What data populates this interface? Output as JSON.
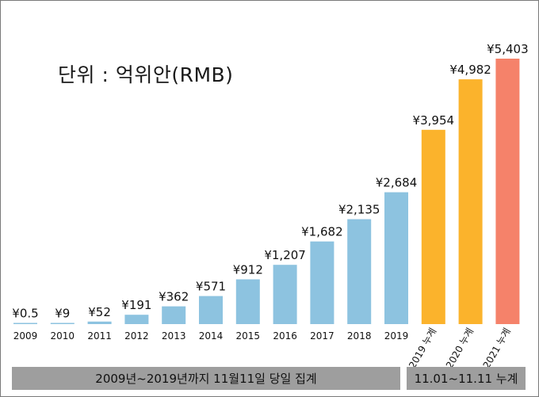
{
  "chart_data": {
    "type": "bar",
    "title": "단위 : 억위안(RMB)",
    "categories": [
      "2009",
      "2010",
      "2011",
      "2012",
      "2013",
      "2014",
      "2015",
      "2016",
      "2017",
      "2018",
      "2019",
      "2019 누계",
      "2020 누계",
      "2021 누계"
    ],
    "values": [
      0.5,
      9,
      52,
      191,
      362,
      571,
      912,
      1207,
      1682,
      2135,
      2684,
      3954,
      4982,
      5403
    ],
    "value_labels": [
      "¥0.5",
      "¥9",
      "¥52",
      "¥191",
      "¥362",
      "¥571",
      "¥912",
      "¥1,207",
      "¥1,682",
      "¥2,135",
      "¥2,684",
      "¥3,954",
      "¥4,982",
      "¥5,403"
    ],
    "bar_colors": [
      "#8dc3e0",
      "#8dc3e0",
      "#8dc3e0",
      "#8dc3e0",
      "#8dc3e0",
      "#8dc3e0",
      "#8dc3e0",
      "#8dc3e0",
      "#8dc3e0",
      "#8dc3e0",
      "#8dc3e0",
      "#fbb32c",
      "#fbb32c",
      "#f5826a"
    ],
    "ylim": [
      0,
      5403
    ],
    "grid": false,
    "groups": [
      {
        "label": "2009년~2019년까지 11월11일 당일 집계"
      },
      {
        "label": "11.01~11.11 누계"
      }
    ]
  }
}
